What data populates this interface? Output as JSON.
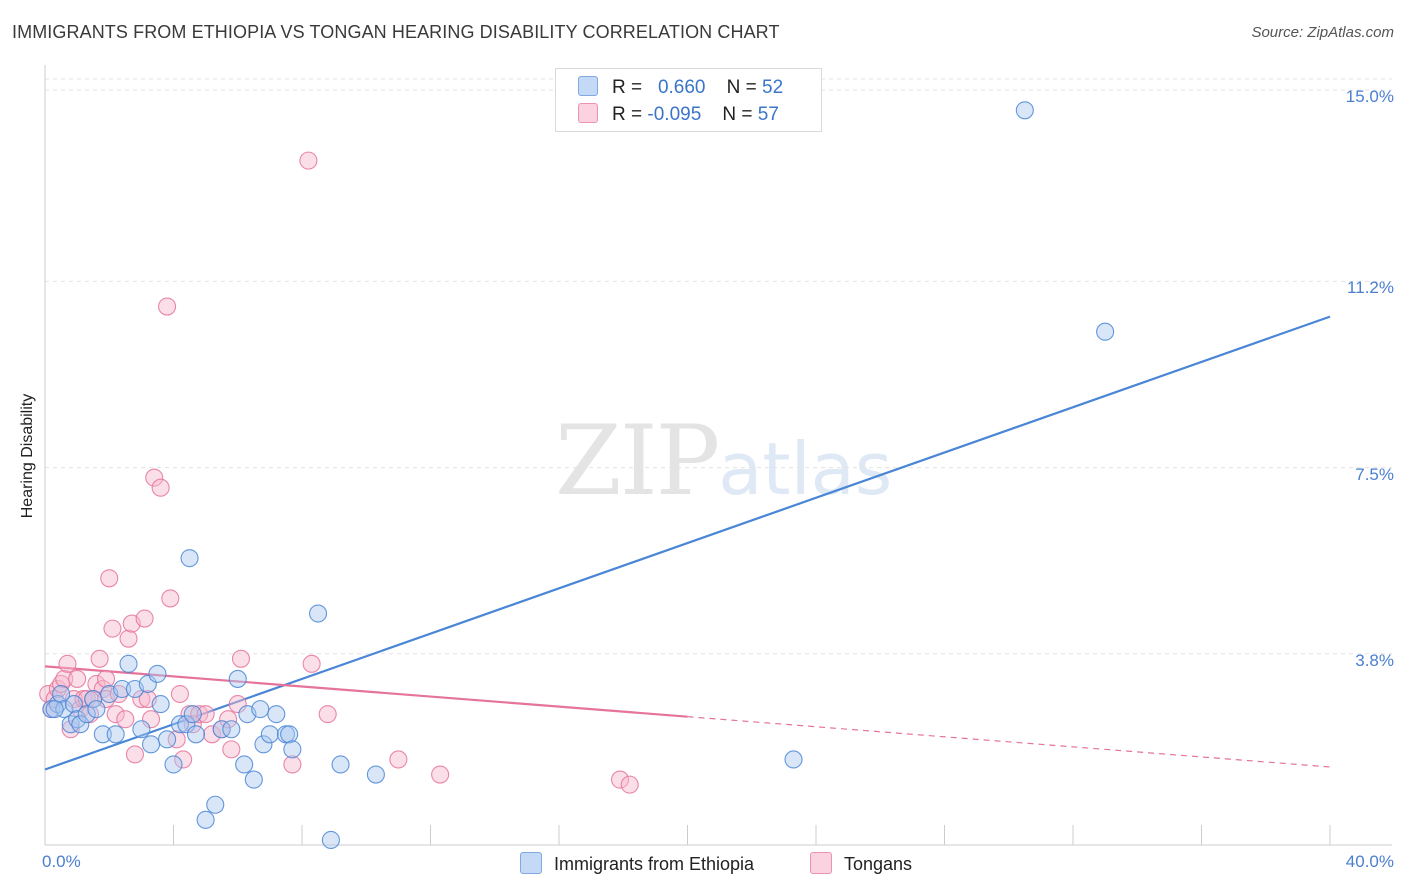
{
  "header": {
    "title": "IMMIGRANTS FROM ETHIOPIA VS TONGAN HEARING DISABILITY CORRELATION CHART",
    "source": "Source: ZipAtlas.com"
  },
  "watermark": {
    "zip": "ZIP",
    "atlas": "atlas"
  },
  "legend": {
    "rows": [
      {
        "r_label": "R =",
        "r_value": "0.660",
        "n_label": "N =",
        "n_value": "52",
        "color": "#a9c8f0"
      },
      {
        "r_label": "R =",
        "r_value": "-0.095",
        "n_label": "N =",
        "n_value": "57",
        "color": "#f7b9cc"
      }
    ]
  },
  "bottom_legend": [
    {
      "label": "Immigrants from Ethiopia",
      "color": "#a9c8f0"
    },
    {
      "label": "Tongans",
      "color": "#f7b9cc"
    }
  ],
  "chart_data": {
    "type": "scatter",
    "title": "IMMIGRANTS FROM ETHIOPIA VS TONGAN HEARING DISABILITY CORRELATION CHART",
    "xlabel": "",
    "ylabel": "Hearing Disability",
    "xlim": [
      0,
      40
    ],
    "ylim": [
      0,
      15.5
    ],
    "x_tick_labels": [
      "0.0%",
      "40.0%"
    ],
    "y_ticks": [
      3.8,
      7.5,
      11.2,
      15.0
    ],
    "y_tick_labels": [
      "3.8%",
      "7.5%",
      "11.2%",
      "15.0%"
    ],
    "grid": true,
    "series": [
      {
        "name": "Immigrants from Ethiopia",
        "color": "#4a86d6",
        "fill": "#a9c8f0",
        "points": [
          [
            0.2,
            2.7
          ],
          [
            0.4,
            2.8
          ],
          [
            0.5,
            3.0
          ],
          [
            0.6,
            2.7
          ],
          [
            0.8,
            2.4
          ],
          [
            0.9,
            2.8
          ],
          [
            1.0,
            2.5
          ],
          [
            1.1,
            2.4
          ],
          [
            1.3,
            2.6
          ],
          [
            1.5,
            2.9
          ],
          [
            1.6,
            2.7
          ],
          [
            1.8,
            2.2
          ],
          [
            2.0,
            3.0
          ],
          [
            2.2,
            2.2
          ],
          [
            2.4,
            3.1
          ],
          [
            2.6,
            3.6
          ],
          [
            2.8,
            3.1
          ],
          [
            3.0,
            2.3
          ],
          [
            3.2,
            3.2
          ],
          [
            3.3,
            2.0
          ],
          [
            3.5,
            3.4
          ],
          [
            3.6,
            2.8
          ],
          [
            3.8,
            2.1
          ],
          [
            4.0,
            1.6
          ],
          [
            4.2,
            2.4
          ],
          [
            4.4,
            2.4
          ],
          [
            4.5,
            5.7
          ],
          [
            4.6,
            2.6
          ],
          [
            4.7,
            2.2
          ],
          [
            5.0,
            0.5
          ],
          [
            5.3,
            0.8
          ],
          [
            5.5,
            2.3
          ],
          [
            5.8,
            2.3
          ],
          [
            6.0,
            3.3
          ],
          [
            6.2,
            1.6
          ],
          [
            6.3,
            2.6
          ],
          [
            6.5,
            1.3
          ],
          [
            6.7,
            2.7
          ],
          [
            6.8,
            2.0
          ],
          [
            7.0,
            2.2
          ],
          [
            7.2,
            2.6
          ],
          [
            7.5,
            2.2
          ],
          [
            7.6,
            2.2
          ],
          [
            7.7,
            1.9
          ],
          [
            8.5,
            4.6
          ],
          [
            8.9,
            0.1
          ],
          [
            9.2,
            1.6
          ],
          [
            10.3,
            1.4
          ],
          [
            23.3,
            1.7
          ],
          [
            30.5,
            14.6
          ],
          [
            33.0,
            10.2
          ],
          [
            0.3,
            2.7
          ]
        ],
        "trendline": {
          "x": [
            0,
            40
          ],
          "y": [
            1.5,
            10.5
          ]
        }
      },
      {
        "name": "Tongans",
        "color": "#e5739b",
        "fill": "#f7b9cc",
        "points": [
          [
            0.1,
            3.0
          ],
          [
            0.2,
            2.7
          ],
          [
            0.3,
            2.9
          ],
          [
            0.4,
            3.1
          ],
          [
            0.5,
            3.2
          ],
          [
            0.6,
            3.3
          ],
          [
            0.7,
            3.6
          ],
          [
            0.8,
            2.3
          ],
          [
            0.9,
            2.9
          ],
          [
            1.0,
            3.3
          ],
          [
            1.1,
            2.7
          ],
          [
            1.2,
            2.9
          ],
          [
            1.3,
            2.9
          ],
          [
            1.4,
            2.6
          ],
          [
            1.5,
            2.9
          ],
          [
            1.6,
            3.2
          ],
          [
            1.7,
            3.7
          ],
          [
            1.8,
            3.1
          ],
          [
            1.9,
            3.3
          ],
          [
            1.9,
            2.9
          ],
          [
            2.0,
            5.3
          ],
          [
            2.1,
            4.3
          ],
          [
            2.2,
            2.6
          ],
          [
            2.3,
            3.0
          ],
          [
            2.5,
            2.5
          ],
          [
            2.6,
            4.1
          ],
          [
            2.7,
            4.4
          ],
          [
            2.8,
            1.8
          ],
          [
            3.0,
            2.9
          ],
          [
            3.1,
            4.5
          ],
          [
            3.2,
            2.9
          ],
          [
            3.3,
            2.5
          ],
          [
            3.4,
            7.3
          ],
          [
            3.6,
            7.1
          ],
          [
            3.8,
            10.7
          ],
          [
            3.9,
            4.9
          ],
          [
            4.1,
            2.1
          ],
          [
            4.2,
            3.0
          ],
          [
            4.3,
            1.7
          ],
          [
            4.5,
            2.6
          ],
          [
            4.6,
            2.4
          ],
          [
            4.8,
            2.6
          ],
          [
            5.0,
            2.6
          ],
          [
            5.2,
            2.2
          ],
          [
            5.5,
            2.3
          ],
          [
            5.7,
            2.5
          ],
          [
            5.8,
            1.9
          ],
          [
            6.0,
            2.8
          ],
          [
            6.1,
            3.7
          ],
          [
            7.7,
            1.6
          ],
          [
            8.2,
            13.6
          ],
          [
            8.3,
            3.6
          ],
          [
            8.8,
            2.6
          ],
          [
            11.0,
            1.7
          ],
          [
            12.3,
            1.4
          ],
          [
            17.9,
            1.3
          ],
          [
            18.2,
            1.2
          ]
        ],
        "trendline": {
          "x": [
            0,
            20
          ],
          "y": [
            3.55,
            2.55
          ]
        },
        "trendline_extension": {
          "x": [
            20,
            40
          ],
          "y": [
            2.55,
            1.55
          ]
        }
      }
    ]
  }
}
